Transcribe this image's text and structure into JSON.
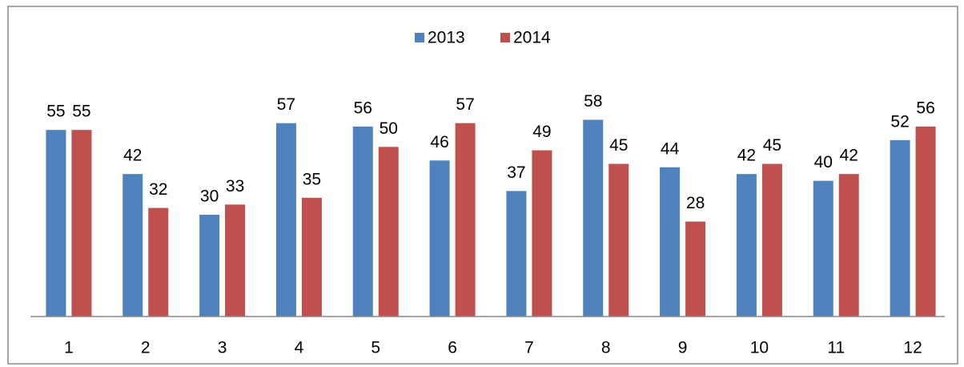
{
  "chart_data": {
    "type": "bar",
    "categories": [
      "1",
      "2",
      "3",
      "4",
      "5",
      "6",
      "7",
      "8",
      "9",
      "10",
      "11",
      "12"
    ],
    "series": [
      {
        "name": "2013",
        "color": "#4f81bd",
        "values": [
          55,
          42,
          30,
          57,
          56,
          46,
          37,
          58,
          44,
          42,
          40,
          52
        ]
      },
      {
        "name": "2014",
        "color": "#c0504d",
        "values": [
          55,
          32,
          33,
          35,
          50,
          57,
          49,
          45,
          28,
          45,
          42,
          56
        ]
      }
    ],
    "ylim": [
      0,
      60
    ],
    "legend": "top"
  }
}
